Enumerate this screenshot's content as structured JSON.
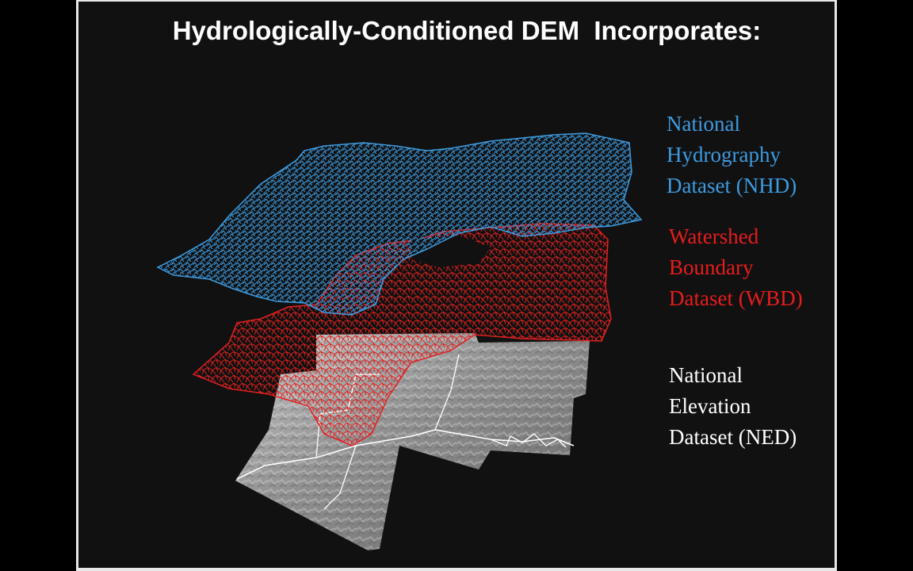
{
  "slide": {
    "title": "Hydrologically-Conditioned DEM  Incorporates:"
  },
  "legend": {
    "nhd": {
      "lines": [
        "National",
        "Hydrography",
        "Dataset (NHD)"
      ],
      "color": "#3d9be0"
    },
    "wbd": {
      "lines": [
        "Watershed",
        "Boundary",
        "Dataset (WBD)"
      ],
      "color": "#e81c1c"
    },
    "ned": {
      "lines": [
        "National",
        "Elevation",
        "Dataset (NED)"
      ],
      "color": "#ffffff"
    }
  },
  "colors": {
    "background": "#111111",
    "letterbox": "#000000",
    "frame": "#e8e8e8"
  }
}
